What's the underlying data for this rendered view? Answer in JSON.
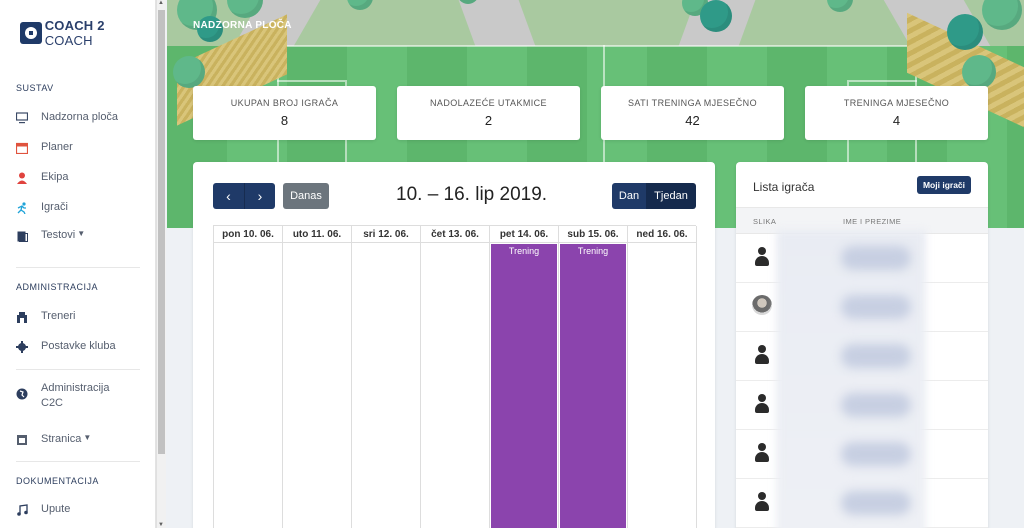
{
  "brand": {
    "name_bold": "COACH 2",
    "name_rest": " COACH"
  },
  "sidebar": {
    "sections": [
      {
        "title": "SUSTAV",
        "items": [
          {
            "label": "Nadzorna ploča",
            "icon": "monitor-icon"
          },
          {
            "label": "Planer",
            "icon": "calendar-icon"
          },
          {
            "label": "Ekipa",
            "icon": "user-icon"
          },
          {
            "label": "Igrači",
            "icon": "runner-icon"
          },
          {
            "label": "Testovi",
            "icon": "clipboard-icon",
            "has_caret": true
          }
        ]
      },
      {
        "title": "ADMINISTRACIJA",
        "items": [
          {
            "label": "Treneri",
            "icon": "building-icon"
          },
          {
            "label": "Postavke kluba",
            "icon": "gear-icon"
          },
          {
            "label": "Administracija C2C",
            "icon": "globe-icon"
          },
          {
            "label": "Stranica",
            "icon": "page-icon",
            "has_caret": true
          }
        ]
      },
      {
        "title": "DOKUMENTACIJA",
        "items": [
          {
            "label": "Upute",
            "icon": "music-note-icon"
          }
        ]
      }
    ]
  },
  "page": {
    "title": "NADZORNA PLOČA"
  },
  "stats": [
    {
      "label": "UKUPAN BROJ IGRAČA",
      "value": "8"
    },
    {
      "label": "NADOLAZEĆE UTAKMICE",
      "value": "2"
    },
    {
      "label": "SATI TRENINGA MJESEČNO",
      "value": "42"
    },
    {
      "label": "TRENINGA MJESEČNO",
      "value": "4"
    }
  ],
  "calendar": {
    "prev_label": "‹",
    "next_label": "›",
    "today_label": "Danas",
    "title": "10. – 16. lip 2019.",
    "view_day": "Dan",
    "view_week": "Tjedan",
    "days": [
      {
        "label": "pon 10. 06.",
        "event": ""
      },
      {
        "label": "uto 11. 06.",
        "event": ""
      },
      {
        "label": "sri 12. 06.",
        "event": ""
      },
      {
        "label": "čet 13. 06.",
        "event": ""
      },
      {
        "label": "pet 14. 06.",
        "event": "Trening"
      },
      {
        "label": "sub 15. 06.",
        "event": "Trening"
      },
      {
        "label": "ned 16. 06.",
        "event": ""
      }
    ],
    "event_color": "#8b44ad"
  },
  "players": {
    "title": "Lista igrača",
    "button": "Moji igrači",
    "col_photo": "SLIKA",
    "col_name": "IME I PREZIME",
    "rows": [
      {
        "avatar": "silhouette"
      },
      {
        "avatar": "photo"
      },
      {
        "avatar": "silhouette"
      },
      {
        "avatar": "silhouette"
      },
      {
        "avatar": "silhouette"
      },
      {
        "avatar": "silhouette"
      }
    ]
  },
  "colors": {
    "primary": "#1f3a68",
    "event": "#8b44ad",
    "field": "#5db66c"
  }
}
